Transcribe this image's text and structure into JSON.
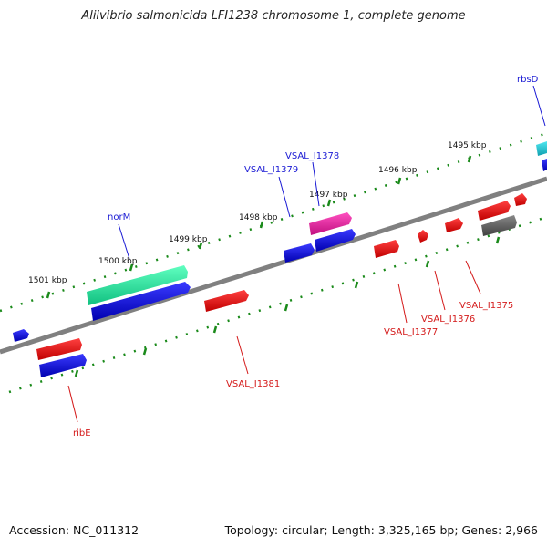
{
  "title": "Aliivibrio salmonicida LFI1238 chromosome 1, complete genome",
  "footer": {
    "accession": "Accession: NC_011312",
    "summary": "Topology: circular; Length: 3,325,165 bp; Genes: 2,966"
  },
  "ruler_labels": {
    "k1495": "1495 kbp",
    "k1496": "1496 kbp",
    "k1497": "1497 kbp",
    "k1498": "1498 kbp",
    "k1499": "1499 kbp",
    "k1500": "1500 kbp",
    "k1501": "1501 kbp"
  },
  "gene_labels": {
    "rbsD": "rbsD",
    "norM": "norM",
    "VSAL_I1378": "VSAL_I1378",
    "VSAL_I1379": "VSAL_I1379",
    "VSAL_I1375": "VSAL_I1375",
    "VSAL_I1376": "VSAL_I1376",
    "VSAL_I1377": "VSAL_I1377",
    "VSAL_I1381": "VSAL_I1381",
    "ribE": "ribE"
  },
  "colors": {
    "cds_blue": "#1010e0",
    "forward_red": "#e01010",
    "green_gene": "#20e8a0",
    "magenta_gene": "#e020a0",
    "cyan_gene": "#20c8d8",
    "gray_gene": "#606060",
    "backbone": "#808080",
    "tick_green": "#1a8a1a",
    "label_blue": "#1a1ad4",
    "label_red": "#d41a1a"
  }
}
